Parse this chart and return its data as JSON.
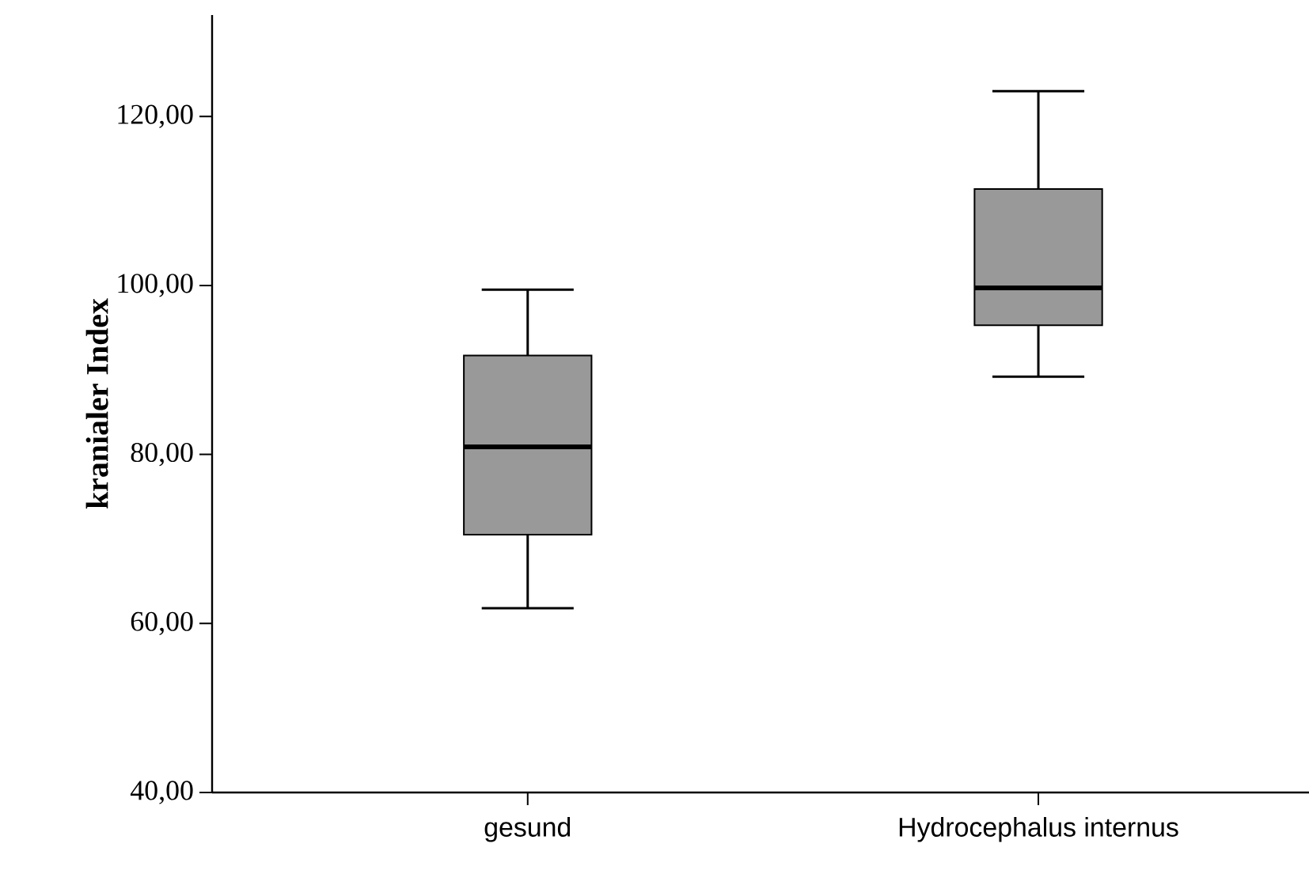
{
  "chart_data": {
    "type": "box",
    "ylabel": "kranialer Index",
    "categories": [
      "gesund",
      "Hydrocephalus internus"
    ],
    "color": "#999999",
    "boxes": [
      {
        "low": 61.8,
        "q1": 70.5,
        "median": 80.9,
        "q3": 91.7,
        "high": 99.5
      },
      {
        "low": 89.2,
        "q1": 95.3,
        "median": 99.7,
        "q3": 111.4,
        "high": 123.0
      }
    ],
    "ylim": [
      40,
      132
    ],
    "yticks": [
      {
        "value": 40,
        "label": "40,00"
      },
      {
        "value": 60,
        "label": "60,00"
      },
      {
        "value": 80,
        "label": "80,00"
      },
      {
        "value": 100,
        "label": "100,00"
      },
      {
        "value": 120,
        "label": "120,00"
      }
    ],
    "grid": false
  }
}
